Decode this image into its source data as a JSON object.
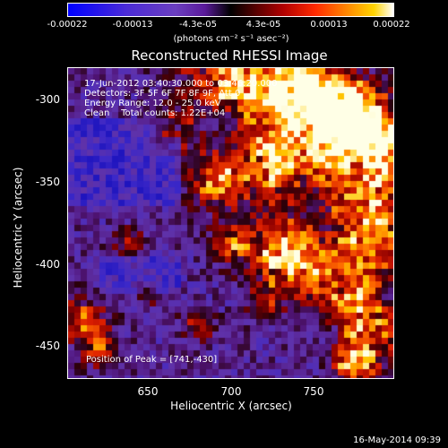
{
  "colorbar": {
    "tick_labels": [
      "-0.00022",
      "-0.00013",
      "-4.3e-05",
      "4.3e-05",
      "0.00013",
      "0.00022"
    ],
    "unit_label": "(photons cm⁻² s⁻¹ asec⁻²)"
  },
  "title": "Reconstructed RHESSI Image",
  "annotations": {
    "time": "17-Jun-2012 03:40:30.000 to 03:46:20.000",
    "detectors": "Detectors: 3F 5F 6F 7F 8F 9F, Att 0",
    "energy": "Energy Range: 12.0 - 25.0 keV",
    "method": "Clean    Total counts: 1.22E+04",
    "peak": "Position of Peak = [741,-430]"
  },
  "axes": {
    "xlabel": "Heliocentric X (arcsec)",
    "ylabel": "Heliocentric Y (arcsec)",
    "xticks": [
      "650",
      "700",
      "750"
    ],
    "yticks": [
      "-300",
      "-350",
      "-400",
      "-450"
    ]
  },
  "datestamp": "16-May-2014 09:39",
  "colors": {
    "background": "#000000",
    "text": "#ffffff"
  }
}
